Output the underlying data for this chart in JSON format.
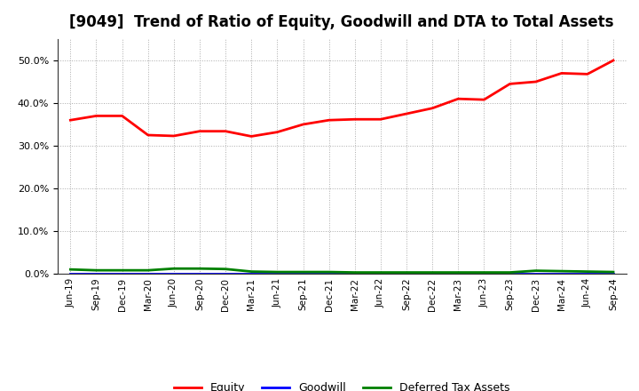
{
  "title": "[9049]  Trend of Ratio of Equity, Goodwill and DTA to Total Assets",
  "x_labels": [
    "Jun-19",
    "Sep-19",
    "Dec-19",
    "Mar-20",
    "Jun-20",
    "Sep-20",
    "Dec-20",
    "Mar-21",
    "Jun-21",
    "Sep-21",
    "Dec-21",
    "Mar-22",
    "Jun-22",
    "Sep-22",
    "Dec-22",
    "Mar-23",
    "Jun-23",
    "Sep-23",
    "Dec-23",
    "Mar-24",
    "Jun-24",
    "Sep-24"
  ],
  "equity": [
    0.36,
    0.37,
    0.37,
    0.325,
    0.323,
    0.334,
    0.334,
    0.322,
    0.332,
    0.35,
    0.36,
    0.362,
    0.362,
    0.375,
    0.388,
    0.41,
    0.408,
    0.445,
    0.45,
    0.47,
    0.468,
    0.5
  ],
  "goodwill": [
    0.0,
    0.0,
    0.0,
    0.0,
    0.0,
    0.0,
    0.0,
    0.0,
    0.0,
    0.0,
    0.0,
    0.0,
    0.0,
    0.0,
    0.0,
    0.0,
    0.0,
    0.0,
    0.0,
    0.0,
    0.0,
    0.0
  ],
  "dta": [
    0.01,
    0.008,
    0.008,
    0.008,
    0.012,
    0.012,
    0.011,
    0.005,
    0.004,
    0.004,
    0.004,
    0.003,
    0.003,
    0.003,
    0.003,
    0.003,
    0.003,
    0.003,
    0.007,
    0.006,
    0.005,
    0.004
  ],
  "equity_color": "#ff0000",
  "goodwill_color": "#0000ff",
  "dta_color": "#008000",
  "ylim": [
    0.0,
    0.55
  ],
  "yticks": [
    0.0,
    0.1,
    0.2,
    0.3,
    0.4,
    0.5
  ],
  "background_color": "#ffffff",
  "plot_bg_color": "#ffffff",
  "grid_color": "#aaaaaa",
  "title_fontsize": 12,
  "legend_labels": [
    "Equity",
    "Goodwill",
    "Deferred Tax Assets"
  ]
}
